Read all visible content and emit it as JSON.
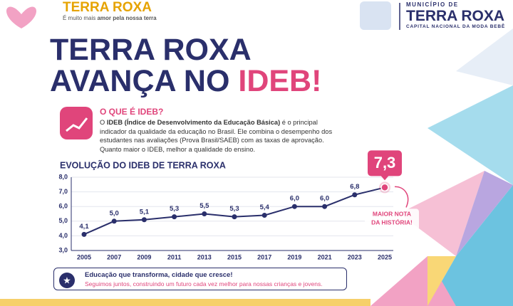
{
  "logo": {
    "name": "TERRA ROXA",
    "tagline_start": "É muito mais ",
    "tagline_bold": "amor pela nossa terra"
  },
  "municipality": {
    "prefix": "MUNICÍPIO DE",
    "name": "TERRA ROXA",
    "subtitle": "CAPITAL NACIONAL DA MODA BEBÊ"
  },
  "headline": {
    "line1": "TERRA ROXA",
    "line2": "AVANÇA NO ",
    "highlight": "IDEB!"
  },
  "info": {
    "heading": "O QUE É IDEB?",
    "text_start": "O ",
    "text_bold": "IDEB (Índice de Desenvolvimento da Educação Básica)",
    "text_rest": " é o principal indicador da qualidade da educação no Brasil. Ele combina o desempenho dos estudantes nas avaliações (Prova Brasil/SAEB) com as taxas de aprovação. Quanto maior o IDEB, melhor a qualidade do ensino."
  },
  "chart_data": {
    "type": "line",
    "title": "EVOLUÇÃO DO IDEB DE TERRA ROXA",
    "categories": [
      "2005",
      "2007",
      "2009",
      "2011",
      "2013",
      "2015",
      "2017",
      "2019",
      "2021",
      "2023",
      "2025"
    ],
    "values": [
      4.1,
      5.0,
      5.1,
      5.3,
      5.5,
      5.3,
      5.4,
      6.0,
      6.0,
      6.8,
      7.3
    ],
    "value_labels": [
      "4,1",
      "5,0",
      "5,1",
      "5,3",
      "5,5",
      "5,3",
      "5,4",
      "6,0",
      "6,0",
      "6,8",
      "7,3"
    ],
    "color": "#2a2f6b",
    "highlight_color": "#e0457b",
    "ylim": [
      3,
      8
    ],
    "yticks": [
      {
        "value": 3,
        "label": "3,0"
      },
      {
        "value": 4,
        "label": "4,0"
      },
      {
        "value": 5,
        "label": "5,0"
      },
      {
        "value": 6,
        "label": "6,0"
      },
      {
        "value": 7,
        "label": "7,0"
      },
      {
        "value": 8,
        "label": "8,0"
      }
    ],
    "grid": true,
    "annotation": "MAIOR NOTA DA HISTÓRIA!"
  },
  "footer": {
    "title": "Educação que transforma, cidade que cresce!",
    "text": "Seguimos juntos, construindo um futuro cada vez melhor para nossas crianças e jovens."
  }
}
